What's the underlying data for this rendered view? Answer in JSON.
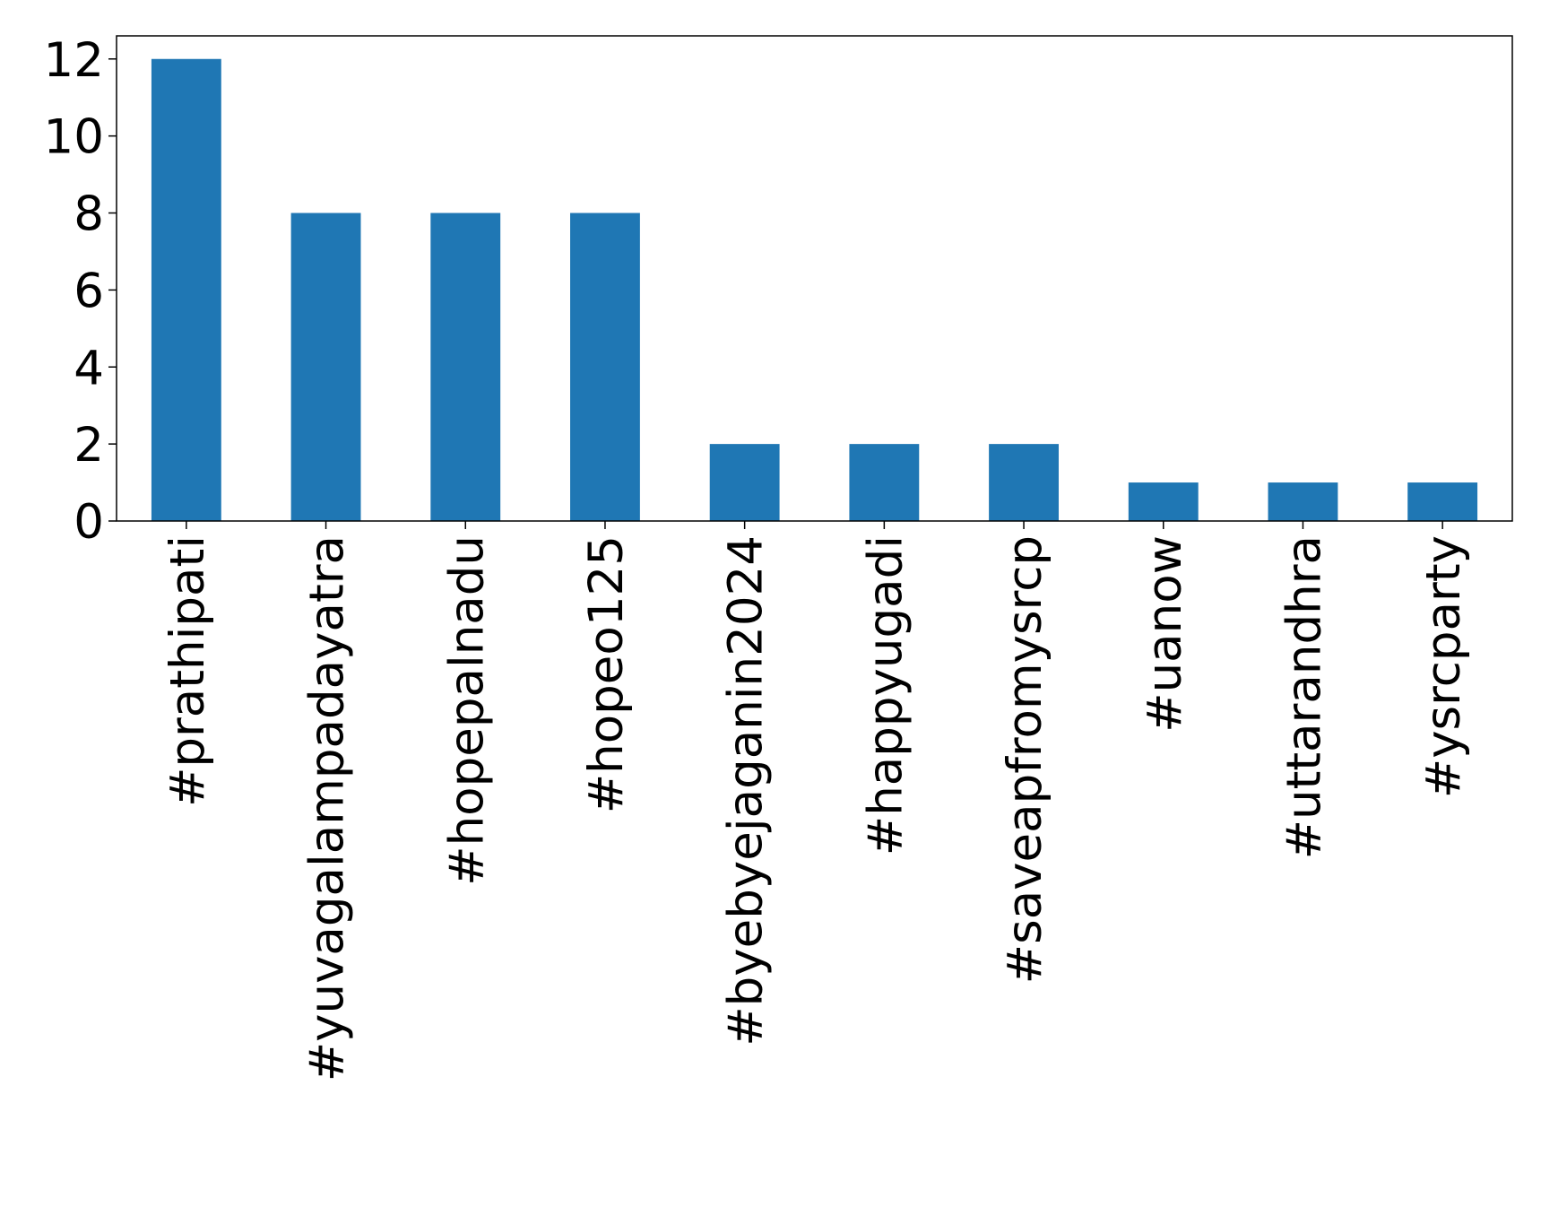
{
  "chart_data": {
    "type": "bar",
    "categories": [
      "#prathipati",
      "#yuvagalampadayatra",
      "#hopepalnadu",
      "#hopeo125",
      "#byebyejaganin2024",
      "#happyugadi",
      "#saveapfromysrcp",
      "#uanow",
      "#uttarandhra",
      "#ysrcparty"
    ],
    "values": [
      12,
      8,
      8,
      8,
      2,
      2,
      2,
      1,
      1,
      1
    ],
    "color": "#1f77b4",
    "ylim": [
      0,
      12.6
    ],
    "yticks": [
      0,
      2,
      4,
      6,
      8,
      10,
      12
    ],
    "grid": false
  }
}
